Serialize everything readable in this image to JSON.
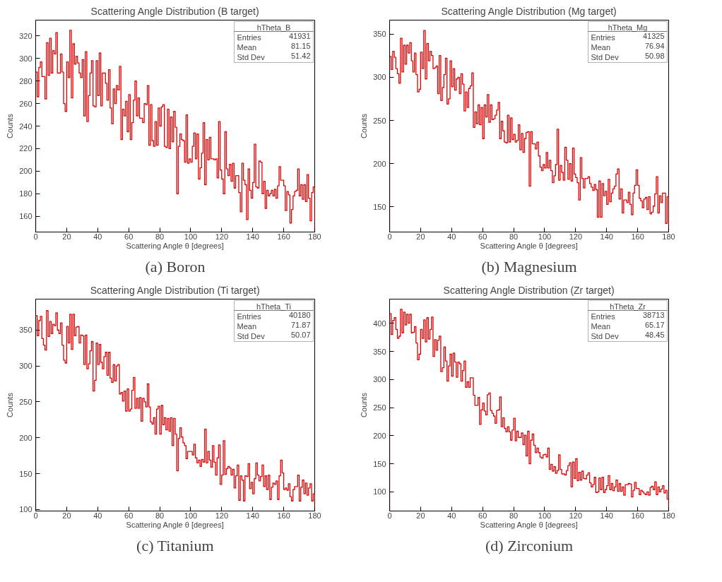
{
  "chart_data": [
    {
      "type": "histogram",
      "title": "Scattering Angle Distribution (B target)",
      "xlabel": "Scattering Angle θ [degrees]",
      "ylabel": "Counts",
      "color": "#dd0000",
      "grid": false,
      "xlim": [
        0,
        180
      ],
      "xticks": [
        0,
        20,
        40,
        60,
        80,
        100,
        120,
        140,
        160,
        180
      ],
      "ylim": [
        146,
        334
      ],
      "yticks": [
        160,
        180,
        200,
        220,
        240,
        260,
        280,
        300,
        320
      ],
      "annotations": [
        "hTheta_B",
        "Entries 41931",
        "Mean 81.15",
        "Std Dev 51.42",
        "(a) Boron"
      ],
      "bins": [
        0,
        1,
        2,
        3,
        4,
        5,
        6,
        7,
        8,
        9,
        10,
        11,
        12,
        13,
        14,
        15,
        16,
        17,
        18,
        19,
        20,
        21,
        22,
        23,
        24,
        25,
        26,
        27,
        28,
        29,
        30,
        31,
        32,
        33,
        34,
        35,
        36,
        37,
        38,
        39,
        40,
        41,
        42,
        43,
        44,
        45,
        46,
        47,
        48,
        49,
        50,
        51,
        52,
        53,
        54,
        55,
        56,
        57,
        58,
        59,
        60,
        61,
        62,
        63,
        64,
        65,
        66,
        67,
        68,
        69,
        70,
        71,
        72,
        73,
        74,
        75,
        76,
        77,
        78,
        79,
        80,
        81,
        82,
        83,
        84,
        85,
        86,
        87,
        88,
        89,
        90,
        91,
        92,
        93,
        94,
        95,
        96,
        97,
        98,
        99,
        100,
        101,
        102,
        103,
        104,
        105,
        106,
        107,
        108,
        109,
        110,
        111,
        112,
        113,
        114,
        115,
        116,
        117,
        118,
        119,
        120,
        121,
        122,
        123,
        124,
        125,
        126,
        127,
        128,
        129,
        130,
        131,
        132,
        133,
        134,
        135,
        136,
        137,
        138,
        139,
        140,
        141,
        142,
        143,
        144,
        145,
        146,
        147,
        148,
        149,
        150,
        151,
        152,
        153,
        154,
        155,
        156,
        157,
        158,
        159,
        160,
        161,
        162,
        163,
        164,
        165,
        166,
        167,
        168,
        169,
        170,
        171,
        172,
        173,
        174,
        175,
        176,
        177,
        178,
        179,
        180
      ],
      "values": [
        288,
        266,
        292,
        297,
        284,
        284,
        264,
        314,
        285,
        318,
        287,
        307,
        304,
        323,
        287,
        287,
        304,
        288,
        260,
        253,
        297,
        283,
        325,
        265,
        313,
        295,
        302,
        296,
        287,
        283,
        299,
        249,
        306,
        244,
        267,
        287,
        298,
        258,
        257,
        298,
        267,
        305,
        258,
        287,
        287,
        278,
        263,
        290,
        256,
        242,
        273,
        260,
        276,
        272,
        293,
        228,
        255,
        249,
        262,
        235,
        268,
        228,
        243,
        263,
        280,
        249,
        265,
        247,
        247,
        243,
        260,
        259,
        276,
        223,
        259,
        227,
        222,
        244,
        223,
        256,
        240,
        257,
        259,
        222,
        221,
        255,
        220,
        248,
        226,
        253,
        239,
        180,
        222,
        233,
        228,
        227,
        208,
        250,
        207,
        211,
        208,
        222,
        234,
        211,
        233,
        193,
        203,
        216,
        243,
        188,
        228,
        210,
        230,
        211,
        211,
        210,
        211,
        194,
        244,
        201,
        193,
        180,
        235,
        202,
        196,
        206,
        191,
        207,
        185,
        196,
        196,
        181,
        164,
        207,
        192,
        188,
        157,
        202,
        183,
        176,
        190,
        224,
        186,
        185,
        209,
        208,
        180,
        191,
        167,
        183,
        178,
        180,
        183,
        178,
        184,
        176,
        187,
        204,
        192,
        192,
        187,
        165,
        182,
        179,
        154,
        166,
        178,
        182,
        183,
        202,
        178,
        188,
        175,
        188,
        173,
        197,
        176,
        156,
        181,
        186
      ]
    },
    {
      "type": "histogram",
      "title": "Scattering Angle Distribution (Mg target)",
      "xlabel": "Scattering Angle θ [degrees]",
      "ylabel": "Counts",
      "color": "#dd0000",
      "grid": false,
      "xlim": [
        0,
        180
      ],
      "xticks": [
        0,
        20,
        40,
        60,
        80,
        100,
        120,
        140,
        160,
        180
      ],
      "ylim": [
        121,
        366
      ],
      "yticks": [
        150,
        200,
        250,
        300,
        350
      ],
      "annotations": [
        "hTheta_Mg",
        "Entries 41325",
        "Mean 76.94",
        "Std Dev 50.98",
        "(b) Magnesium"
      ],
      "bins": [
        0,
        1,
        2,
        3,
        4,
        5,
        6,
        7,
        8,
        9,
        10,
        11,
        12,
        13,
        14,
        15,
        16,
        17,
        18,
        19,
        20,
        21,
        22,
        23,
        24,
        25,
        26,
        27,
        28,
        29,
        30,
        31,
        32,
        33,
        34,
        35,
        36,
        37,
        38,
        39,
        40,
        41,
        42,
        43,
        44,
        45,
        46,
        47,
        48,
        49,
        50,
        51,
        52,
        53,
        54,
        55,
        56,
        57,
        58,
        59,
        60,
        61,
        62,
        63,
        64,
        65,
        66,
        67,
        68,
        69,
        70,
        71,
        72,
        73,
        74,
        75,
        76,
        77,
        78,
        79,
        80,
        81,
        82,
        83,
        84,
        85,
        86,
        87,
        88,
        89,
        90,
        91,
        92,
        93,
        94,
        95,
        96,
        97,
        98,
        99,
        100,
        101,
        102,
        103,
        104,
        105,
        106,
        107,
        108,
        109,
        110,
        111,
        112,
        113,
        114,
        115,
        116,
        117,
        118,
        119,
        120,
        121,
        122,
        123,
        124,
        125,
        126,
        127,
        128,
        129,
        130,
        131,
        132,
        133,
        134,
        135,
        136,
        137,
        138,
        139,
        140,
        141,
        142,
        143,
        144,
        145,
        146,
        147,
        148,
        149,
        150,
        151,
        152,
        153,
        154,
        155,
        156,
        157,
        158,
        159,
        160,
        161,
        162,
        163,
        164,
        165,
        166,
        167,
        168,
        169,
        170,
        171,
        172,
        173,
        174,
        175,
        176,
        177,
        178,
        179,
        180
      ],
      "values": [
        324,
        309,
        330,
        323,
        310,
        304,
        293,
        345,
        306,
        337,
        315,
        337,
        328,
        340,
        319,
        306,
        328,
        303,
        283,
        286,
        329,
        310,
        354,
        298,
        339,
        319,
        330,
        325,
        310,
        311,
        313,
        281,
        325,
        273,
        288,
        303,
        322,
        269,
        275,
        319,
        289,
        310,
        285,
        298,
        300,
        281,
        304,
        292,
        261,
        283,
        265,
        287,
        290,
        305,
        242,
        260,
        246,
        268,
        245,
        265,
        229,
        268,
        254,
        280,
        248,
        268,
        251,
        252,
        256,
        262,
        271,
        229,
        249,
        238,
        225,
        224,
        256,
        225,
        253,
        228,
        234,
        225,
        227,
        245,
        216,
        235,
        213,
        229,
        236,
        237,
        174,
        237,
        223,
        223,
        217,
        225,
        209,
        196,
        192,
        199,
        195,
        213,
        195,
        204,
        192,
        178,
        186,
        199,
        240,
        181,
        198,
        190,
        181,
        219,
        204,
        182,
        200,
        180,
        218,
        188,
        184,
        178,
        158,
        207,
        183,
        172,
        183,
        183,
        185,
        177,
        173,
        169,
        176,
        170,
        138,
        180,
        138,
        177,
        163,
        168,
        153,
        182,
        156,
        166,
        171,
        174,
        188,
        194,
        159,
        171,
        143,
        158,
        158,
        155,
        167,
        153,
        141,
        166,
        175,
        193,
        175,
        160,
        157,
        149,
        159,
        161,
        147,
        162,
        142,
        144,
        151,
        165,
        185,
        143,
        163,
        155,
        166,
        166,
        131,
        162
      ]
    },
    {
      "type": "histogram",
      "title": "Scattering Angle Distribution (Ti target)",
      "xlabel": "Scattering Angle θ [degrees]",
      "ylabel": "Counts",
      "color": "#dd0000",
      "grid": false,
      "xlim": [
        0,
        180
      ],
      "xticks": [
        0,
        20,
        40,
        60,
        80,
        100,
        120,
        140,
        160,
        180
      ],
      "ylim": [
        98,
        393
      ],
      "yticks": [
        100,
        150,
        200,
        250,
        300,
        350
      ],
      "annotations": [
        "hTheta_Ti",
        "Entries 40180",
        "Mean 71.87",
        "Std Dev 50.07",
        "(c) Titanium"
      ],
      "bins": [
        0,
        1,
        2,
        3,
        4,
        5,
        6,
        7,
        8,
        9,
        10,
        11,
        12,
        13,
        14,
        15,
        16,
        17,
        18,
        19,
        20,
        21,
        22,
        23,
        24,
        25,
        26,
        27,
        28,
        29,
        30,
        31,
        32,
        33,
        34,
        35,
        36,
        37,
        38,
        39,
        40,
        41,
        42,
        43,
        44,
        45,
        46,
        47,
        48,
        49,
        50,
        51,
        52,
        53,
        54,
        55,
        56,
        57,
        58,
        59,
        60,
        61,
        62,
        63,
        64,
        65,
        66,
        67,
        68,
        69,
        70,
        71,
        72,
        73,
        74,
        75,
        76,
        77,
        78,
        79,
        80,
        81,
        82,
        83,
        84,
        85,
        86,
        87,
        88,
        89,
        90,
        91,
        92,
        93,
        94,
        95,
        96,
        97,
        98,
        99,
        100,
        101,
        102,
        103,
        104,
        105,
        106,
        107,
        108,
        109,
        110,
        111,
        112,
        113,
        114,
        115,
        116,
        117,
        118,
        119,
        120,
        121,
        122,
        123,
        124,
        125,
        126,
        127,
        128,
        129,
        130,
        131,
        132,
        133,
        134,
        135,
        136,
        137,
        138,
        139,
        140,
        141,
        142,
        143,
        144,
        145,
        146,
        147,
        148,
        149,
        150,
        151,
        152,
        153,
        154,
        155,
        156,
        157,
        158,
        159,
        160,
        161,
        162,
        163,
        164,
        165,
        166,
        167,
        168,
        169,
        170,
        171,
        172,
        173,
        174,
        175,
        176,
        177,
        178,
        179,
        180
      ],
      "values": [
        370,
        342,
        363,
        369,
        338,
        329,
        322,
        377,
        341,
        362,
        345,
        358,
        356,
        374,
        350,
        345,
        360,
        329,
        308,
        304,
        355,
        332,
        372,
        323,
        372,
        342,
        354,
        355,
        332,
        343,
        342,
        302,
        343,
        296,
        303,
        321,
        334,
        265,
        280,
        332,
        302,
        330,
        305,
        296,
        313,
        319,
        287,
        319,
        283,
        277,
        302,
        279,
        300,
        302,
        261,
        263,
        251,
        265,
        237,
        268,
        237,
        240,
        266,
        284,
        241,
        255,
        241,
        256,
        223,
        255,
        250,
        243,
        275,
        243,
        222,
        219,
        228,
        205,
        240,
        244,
        205,
        245,
        218,
        228,
        211,
        227,
        209,
        228,
        189,
        227,
        205,
        154,
        199,
        214,
        201,
        193,
        189,
        171,
        181,
        181,
        181,
        176,
        191,
        172,
        165,
        169,
        160,
        170,
        166,
        212,
        165,
        181,
        169,
        159,
        189,
        166,
        148,
        172,
        190,
        135,
        148,
        196,
        149,
        157,
        160,
        158,
        148,
        156,
        130,
        147,
        162,
        113,
        147,
        141,
        112,
        147,
        146,
        164,
        129,
        138,
        122,
        143,
        165,
        148,
        140,
        146,
        162,
        132,
        147,
        128,
        148,
        114,
        131,
        137,
        135,
        140,
        114,
        147,
        169,
        151,
        128,
        130,
        127,
        136,
        118,
        112,
        128,
        132,
        132,
        148,
        112,
        131,
        141,
        122,
        137,
        120,
        130,
        136,
        112,
        122
      ]
    },
    {
      "type": "histogram",
      "title": "Scattering Angle Distribution (Zr target)",
      "xlabel": "Scattering Angle θ [degrees]",
      "ylabel": "Counts",
      "color": "#dd0000",
      "grid": false,
      "xlim": [
        0,
        180
      ],
      "xticks": [
        0,
        20,
        40,
        60,
        80,
        100,
        120,
        140,
        160,
        180
      ],
      "ylim": [
        66,
        443
      ],
      "yticks": [
        100,
        150,
        200,
        250,
        300,
        350,
        400
      ],
      "annotations": [
        "hTheta_Zr",
        "Entries 38713",
        "Mean 65.17",
        "Std Dev 48.45",
        "(d) Zirconium"
      ],
      "bins": [
        0,
        1,
        2,
        3,
        4,
        5,
        6,
        7,
        8,
        9,
        10,
        11,
        12,
        13,
        14,
        15,
        16,
        17,
        18,
        19,
        20,
        21,
        22,
        23,
        24,
        25,
        26,
        27,
        28,
        29,
        30,
        31,
        32,
        33,
        34,
        35,
        36,
        37,
        38,
        39,
        40,
        41,
        42,
        43,
        44,
        45,
        46,
        47,
        48,
        49,
        50,
        51,
        52,
        53,
        54,
        55,
        56,
        57,
        58,
        59,
        60,
        61,
        62,
        63,
        64,
        65,
        66,
        67,
        68,
        69,
        70,
        71,
        72,
        73,
        74,
        75,
        76,
        77,
        78,
        79,
        80,
        81,
        82,
        83,
        84,
        85,
        86,
        87,
        88,
        89,
        90,
        91,
        92,
        93,
        94,
        95,
        96,
        97,
        98,
        99,
        100,
        101,
        102,
        103,
        104,
        105,
        106,
        107,
        108,
        109,
        110,
        111,
        112,
        113,
        114,
        115,
        116,
        117,
        118,
        119,
        120,
        121,
        122,
        123,
        124,
        125,
        126,
        127,
        128,
        129,
        130,
        131,
        132,
        133,
        134,
        135,
        136,
        137,
        138,
        139,
        140,
        141,
        142,
        143,
        144,
        145,
        146,
        147,
        148,
        149,
        150,
        151,
        152,
        153,
        154,
        155,
        156,
        157,
        158,
        159,
        160,
        161,
        162,
        163,
        164,
        165,
        166,
        167,
        168,
        169,
        170,
        171,
        172,
        173,
        174,
        175,
        176,
        177,
        178,
        179,
        180
      ],
      "values": [
        417,
        380,
        405,
        410,
        389,
        373,
        377,
        425,
        383,
        420,
        397,
        416,
        400,
        416,
        383,
        384,
        394,
        365,
        335,
        345,
        389,
        373,
        406,
        367,
        410,
        372,
        389,
        411,
        341,
        371,
        352,
        370,
        377,
        314,
        321,
        358,
        333,
        297,
        324,
        345,
        306,
        347,
        331,
        304,
        331,
        328,
        297,
        316,
        333,
        286,
        296,
        286,
        303,
        303,
        272,
        254,
        254,
        268,
        220,
        246,
        258,
        244,
        237,
        273,
        276,
        245,
        240,
        235,
        222,
        245,
        246,
        269,
        216,
        232,
        213,
        207,
        216,
        207,
        192,
        210,
        231,
        191,
        208,
        197,
        197,
        205,
        184,
        201,
        164,
        208,
        150,
        192,
        203,
        183,
        170,
        178,
        170,
        162,
        160,
        166,
        167,
        162,
        178,
        140,
        149,
        137,
        145,
        133,
        138,
        166,
        140,
        132,
        132,
        130,
        138,
        147,
        152,
        109,
        153,
        124,
        159,
        120,
        135,
        121,
        137,
        124,
        123,
        130,
        134,
        116,
        109,
        113,
        126,
        99,
        100,
        125,
        104,
        126,
        99,
        104,
        111,
        129,
        104,
        115,
        102,
        109,
        121,
        101,
        115,
        101,
        109,
        94,
        113,
        113,
        115,
        114,
        91,
        103,
        117,
        106,
        106,
        95,
        103,
        100,
        97,
        95,
        100,
        94,
        108,
        110,
        104,
        118,
        95,
        109,
        100,
        105,
        111,
        98,
        103,
        87
      ]
    }
  ]
}
